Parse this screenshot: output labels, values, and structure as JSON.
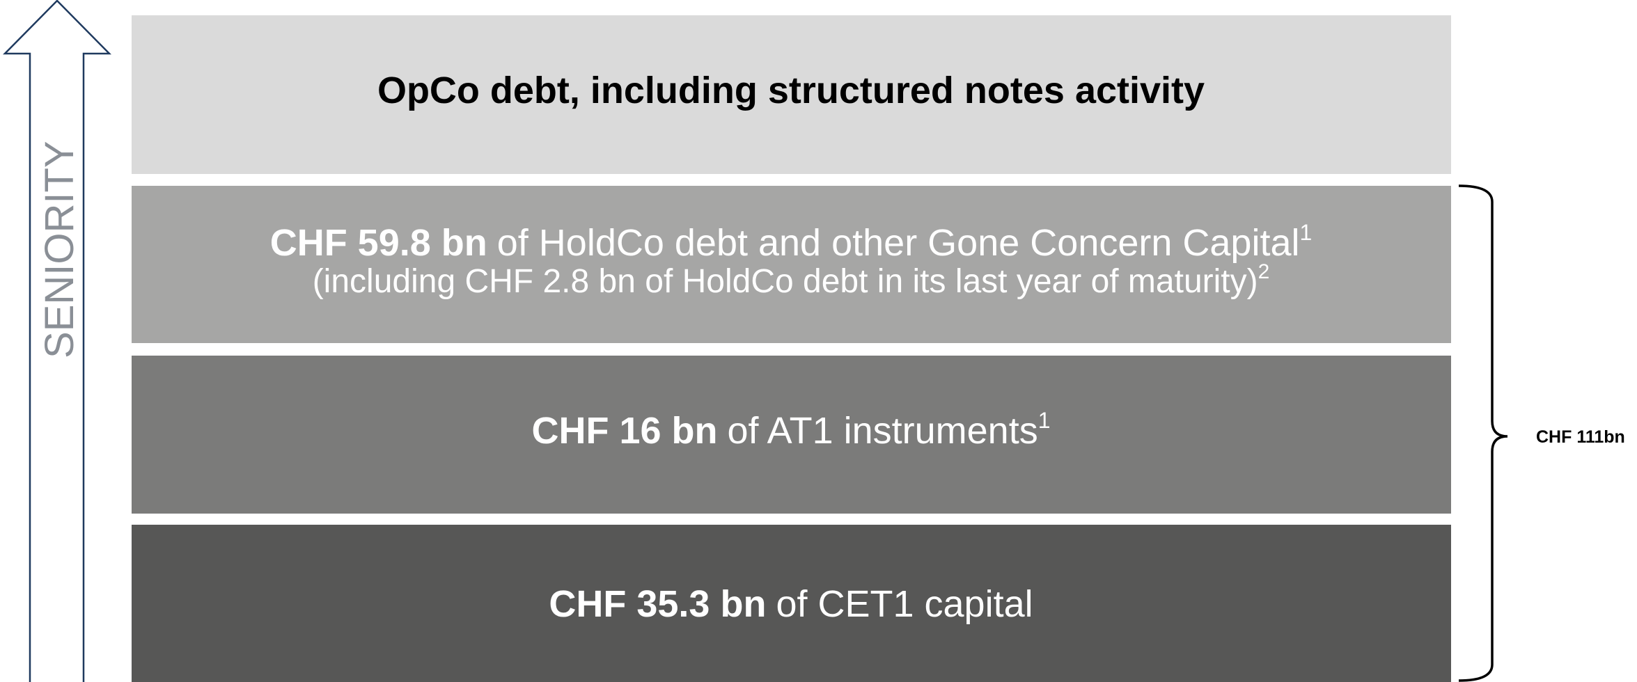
{
  "arrow": {
    "label": "SENIORITY"
  },
  "layers": [
    {
      "bold": "OpCo debt, including structured notes activity"
    },
    {
      "bold": "CHF 59.8 bn",
      "text": "of HoldCo debt and other Gone Concern Capital",
      "sup": "1",
      "note": "(including CHF 2.8 bn of HoldCo debt in its last year of maturity)",
      "note_sup": "2"
    },
    {
      "bold": "CHF 16 bn",
      "text": "of AT1 instruments",
      "sup": "1"
    },
    {
      "bold": "CHF 35.3 bn",
      "text": "of CET1 capital"
    }
  ],
  "brace": {
    "label": "CHF 111bn"
  }
}
